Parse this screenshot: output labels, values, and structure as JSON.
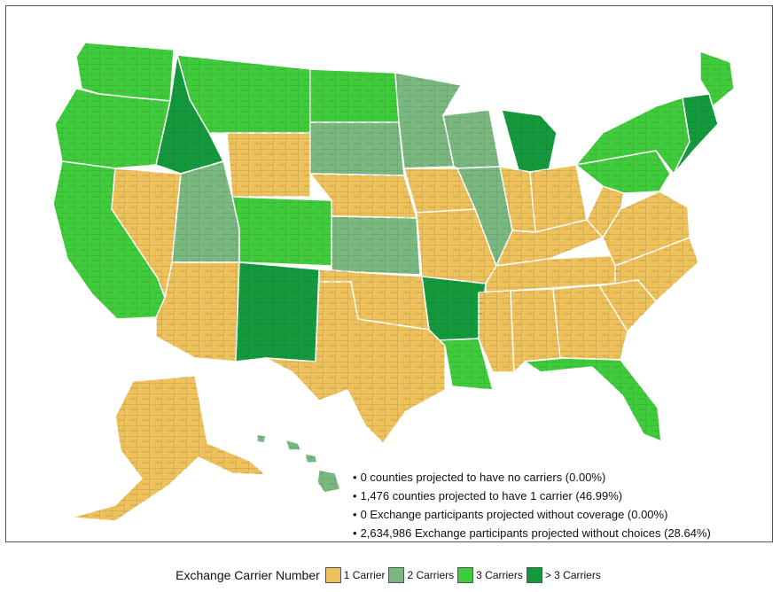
{
  "legend": {
    "title": "Exchange Carrier Number",
    "items": [
      {
        "label": "1 Carrier",
        "color": "#efc15a"
      },
      {
        "label": "2 Carriers",
        "color": "#79b97f"
      },
      {
        "label": "3 Carriers",
        "color": "#3fcc3a"
      },
      {
        "label": "> 3 Carriers",
        "color": "#129a3c"
      }
    ]
  },
  "stats": [
    {
      "bullet": "•",
      "text": "0 counties projected to have no carriers (0.00%)"
    },
    {
      "bullet": "•",
      "text": "1,476 counties projected to have 1 carrier (46.99%)"
    },
    {
      "bullet": "•",
      "text": "0 Exchange participants projected without coverage (0.00%)"
    },
    {
      "bullet": "•",
      "text": "2,634,986 Exchange participants projected without choices (28.64%)"
    }
  ],
  "regions": [
    {
      "name": "Washington",
      "category": 3
    },
    {
      "name": "Oregon",
      "category": 3
    },
    {
      "name": "California",
      "category": 3
    },
    {
      "name": "Nevada",
      "category": 1
    },
    {
      "name": "Idaho",
      "category": 4
    },
    {
      "name": "Montana",
      "category": 3
    },
    {
      "name": "Wyoming",
      "category": 1
    },
    {
      "name": "Utah",
      "category": 2
    },
    {
      "name": "Arizona",
      "category": 1
    },
    {
      "name": "Colorado",
      "category": 3
    },
    {
      "name": "New Mexico",
      "category": 4
    },
    {
      "name": "North Dakota",
      "category": 3
    },
    {
      "name": "South Dakota",
      "category": 2
    },
    {
      "name": "Nebraska",
      "category": 1
    },
    {
      "name": "Kansas",
      "category": 2
    },
    {
      "name": "Oklahoma",
      "category": 1
    },
    {
      "name": "Texas",
      "category": 1
    },
    {
      "name": "Minnesota",
      "category": 2
    },
    {
      "name": "Iowa",
      "category": 1
    },
    {
      "name": "Missouri",
      "category": 1
    },
    {
      "name": "Arkansas",
      "category": 4
    },
    {
      "name": "Louisiana",
      "category": 3
    },
    {
      "name": "Wisconsin",
      "category": 2
    },
    {
      "name": "Illinois",
      "category": 2
    },
    {
      "name": "Michigan",
      "category": 4
    },
    {
      "name": "Indiana",
      "category": 1
    },
    {
      "name": "Ohio",
      "category": 1
    },
    {
      "name": "Kentucky",
      "category": 1
    },
    {
      "name": "Tennessee",
      "category": 1
    },
    {
      "name": "Mississippi",
      "category": 1
    },
    {
      "name": "Alabama",
      "category": 1
    },
    {
      "name": "Georgia",
      "category": 1
    },
    {
      "name": "Florida",
      "category": 3
    },
    {
      "name": "South Carolina",
      "category": 1
    },
    {
      "name": "North Carolina",
      "category": 1
    },
    {
      "name": "Virginia",
      "category": 1
    },
    {
      "name": "West Virginia",
      "category": 1
    },
    {
      "name": "Pennsylvania",
      "category": 3
    },
    {
      "name": "New York",
      "category": 3
    },
    {
      "name": "New England",
      "category": 4
    },
    {
      "name": "Maine",
      "category": 3
    },
    {
      "name": "Alaska",
      "category": 1
    },
    {
      "name": "Hawaii",
      "category": 2
    }
  ]
}
